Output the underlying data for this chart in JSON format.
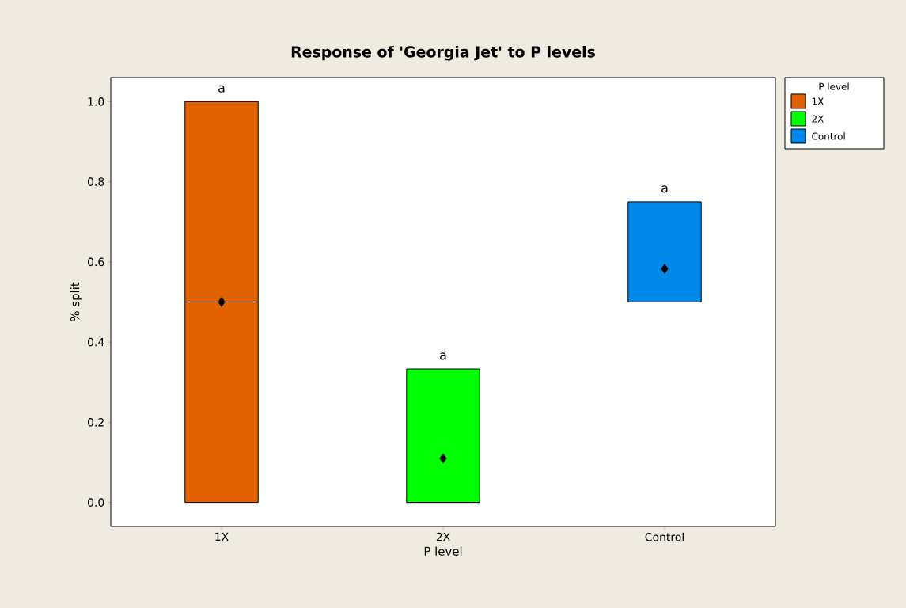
{
  "chart_data": {
    "type": "box",
    "title": "Response of 'Georgia Jet' to P levels",
    "xlabel": "P level",
    "ylabel": "% split",
    "legend_title": "P level",
    "categories": [
      "1X",
      "2X",
      "Control"
    ],
    "series": [
      {
        "name": "1X",
        "color": "#e36200",
        "boxes": [
          {
            "low": 0,
            "q1": 0,
            "median": 0.5,
            "q3": 1.0,
            "high": 1.0,
            "mean": 0.5
          },
          null,
          null
        ]
      },
      {
        "name": "2X",
        "color": "#00ff00",
        "boxes": [
          null,
          {
            "low": 0,
            "q1": 0,
            "median": 0,
            "q3": 0.333,
            "high": 0.333,
            "mean": 0.11
          },
          null
        ]
      },
      {
        "name": "Control",
        "color": "#0088e8",
        "boxes": [
          null,
          null,
          {
            "low": 0.5,
            "q1": 0.5,
            "median": 0.5,
            "q3": 0.75,
            "high": 0.75,
            "mean": 0.583
          }
        ]
      }
    ],
    "ylim": [
      -0.06,
      1.06
    ],
    "yticks": [
      {
        "value": 0,
        "label": "0.0"
      },
      {
        "value": 0.2,
        "label": "0.2"
      },
      {
        "value": 0.4,
        "label": "0.4"
      },
      {
        "value": 0.6,
        "label": "0.6"
      },
      {
        "value": 0.8,
        "label": "0.8"
      },
      {
        "value": 1.0,
        "label": "1.0"
      }
    ],
    "marker": "diamond",
    "legend": "right",
    "grid": false,
    "annotations": [
      "a",
      "a",
      "a"
    ]
  }
}
